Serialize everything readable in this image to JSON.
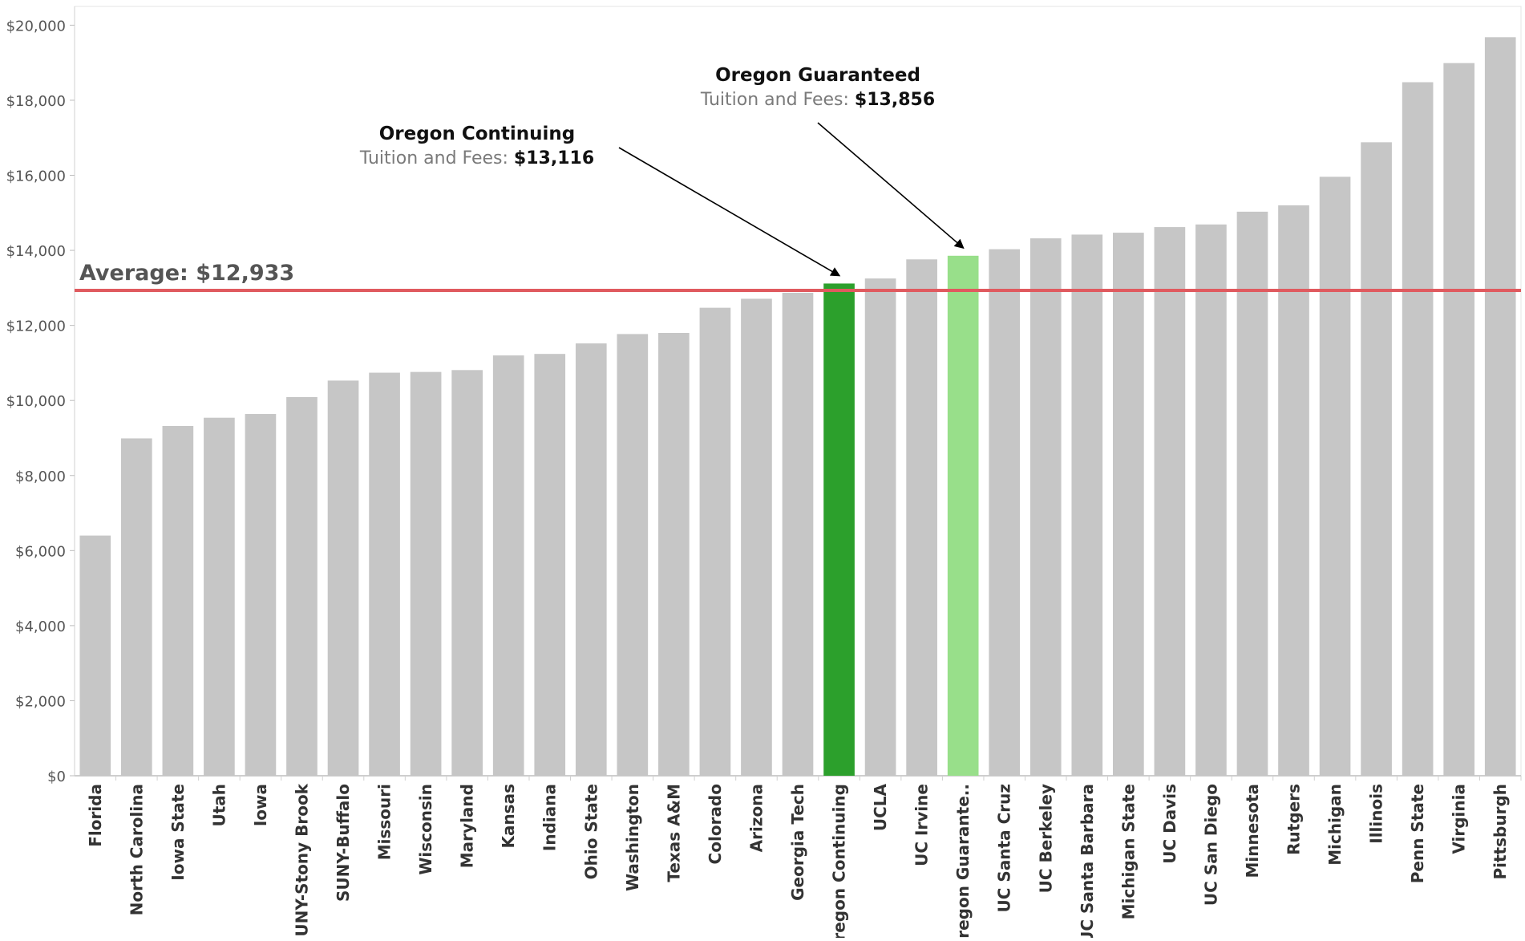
{
  "chart_data": {
    "type": "bar",
    "title": "",
    "xlabel": "",
    "ylabel": "",
    "ylim": [
      0,
      20500
    ],
    "y_ticks": [
      0,
      2000,
      4000,
      6000,
      8000,
      10000,
      12000,
      14000,
      16000,
      18000,
      20000
    ],
    "y_tick_labels": [
      "$0",
      "$2,000",
      "$4,000",
      "$6,000",
      "$8,000",
      "$10,000",
      "$12,000",
      "$14,000",
      "$16,000",
      "$18,000",
      "$20,000"
    ],
    "grid": false,
    "categories": [
      "Florida",
      "North Carolina",
      "Iowa State",
      "Utah",
      "Iowa",
      "SUNY-Stony Brook",
      "SUNY-Buffalo",
      "Missouri",
      "Wisconsin",
      "Maryland",
      "Kansas",
      "Indiana",
      "Ohio State",
      "Washington",
      "Texas A&M",
      "Colorado",
      "Arizona",
      "Georgia Tech",
      "Oregon Continuing",
      "UCLA",
      "UC Irvine",
      "Oregon Guarante..",
      "UC Santa Cruz",
      "UC Berkeley",
      "UC Santa Barbara",
      "Michigan State",
      "UC Davis",
      "UC San Diego",
      "Minnesota",
      "Rutgers",
      "Michigan",
      "Illinois",
      "Penn State",
      "Virginia",
      "Pittsburgh"
    ],
    "values": [
      6400,
      8990,
      9320,
      9540,
      9640,
      10090,
      10530,
      10740,
      10760,
      10810,
      11200,
      11240,
      11520,
      11770,
      11800,
      12470,
      12710,
      12870,
      13116,
      13250,
      13760,
      13856,
      14030,
      14320,
      14420,
      14470,
      14620,
      14690,
      15030,
      15200,
      15960,
      16880,
      18480,
      18990,
      19680
    ],
    "bar_colors": {
      "default": "#c6c6c6",
      "Oregon Continuing": "#2ca02c",
      "Oregon Guarante..": "#98df8a"
    },
    "reference_line": {
      "value": 12933,
      "label": "Average: $12,933",
      "color": "#e05a5f"
    },
    "annotations": [
      {
        "title": "Oregon Continuing",
        "subtitle": "Tuition and Fees: ",
        "value": "$13,116",
        "target": "Oregon Continuing"
      },
      {
        "title": "Oregon Guaranteed",
        "subtitle": "Tuition and Fees: ",
        "value": "$13,856",
        "target": "Oregon Guarante.."
      }
    ]
  }
}
